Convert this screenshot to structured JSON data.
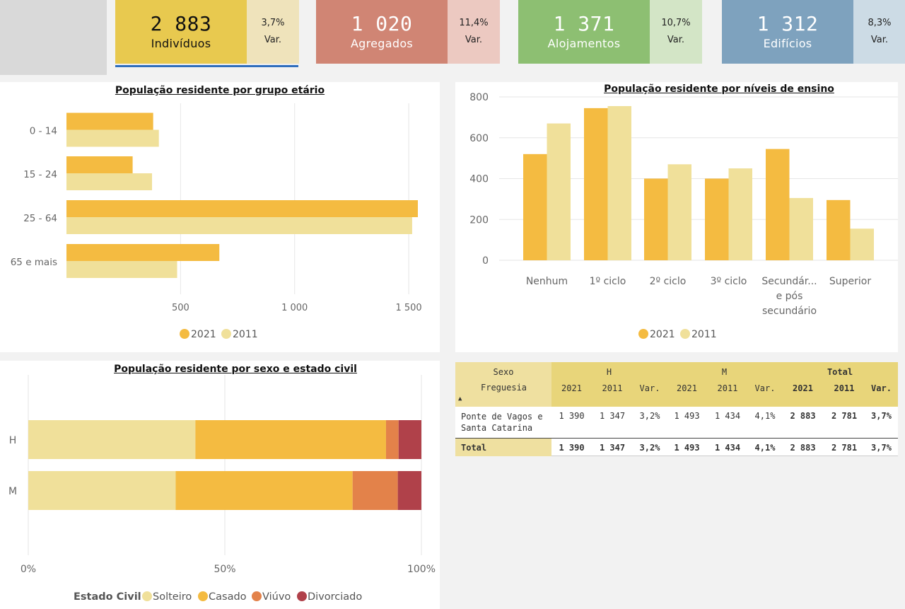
{
  "kpis": {
    "individuos": {
      "value": "2 883",
      "label": "Indivíduos",
      "var_value": "3,7%",
      "var_label": "Var."
    },
    "agregados": {
      "value": "1 020",
      "label": "Agregados",
      "var_value": "11,4%",
      "var_label": "Var."
    },
    "alojamentos": {
      "value": "1 371",
      "label": "Alojamentos",
      "var_value": "10,7%",
      "var_label": "Var."
    },
    "edificios": {
      "value": "1 312",
      "label": "Edifícios",
      "var_value": "8,3%",
      "var_label": "Var."
    }
  },
  "chart_data": [
    {
      "type": "bar",
      "orientation": "horizontal",
      "title": "População residente por grupo etário",
      "categories": [
        "0 - 14",
        "15 - 24",
        "25 - 64",
        "65 e mais"
      ],
      "series": [
        {
          "name": "2021",
          "values": [
            380,
            290,
            1540,
            670
          ],
          "color": "#f4bb41"
        },
        {
          "name": "2011",
          "values": [
            405,
            375,
            1515,
            485
          ],
          "color": "#f0e09a"
        }
      ],
      "xticks": [
        500,
        1000,
        1500
      ],
      "xtick_labels": [
        "500",
        "1 000",
        "1 500"
      ],
      "xlim": [
        0,
        1560
      ],
      "legend": "bottom-center",
      "grid": true
    },
    {
      "type": "bar",
      "title": "População residente por níveis de ensino",
      "categories": [
        "Nenhum",
        "1º ciclo",
        "2º ciclo",
        "3º ciclo",
        "Secundár... e pós secundário",
        "Superior"
      ],
      "category_lines": [
        [
          "Nenhum"
        ],
        [
          "1º ciclo"
        ],
        [
          "2º ciclo"
        ],
        [
          "3º ciclo"
        ],
        [
          "Secundár...",
          "e pós",
          "secundário"
        ],
        [
          "Superior"
        ]
      ],
      "series": [
        {
          "name": "2021",
          "values": [
            520,
            745,
            400,
            400,
            545,
            295
          ],
          "color": "#f4bb41"
        },
        {
          "name": "2011",
          "values": [
            670,
            755,
            470,
            450,
            305,
            155
          ],
          "color": "#f0e09a"
        }
      ],
      "yticks": [
        0,
        200,
        400,
        600,
        800
      ],
      "ylim": [
        0,
        800
      ],
      "legend": "bottom-center",
      "grid": true
    },
    {
      "type": "bar",
      "orientation": "horizontal",
      "stacked": "percent",
      "title": "População residente por sexo e estado civil",
      "categories": [
        "H",
        "M"
      ],
      "series": [
        {
          "name": "Solteiro",
          "values": [
            42.5,
            37.5
          ],
          "color": "#f0e09a"
        },
        {
          "name": "Casado",
          "values": [
            48.5,
            45.0
          ],
          "color": "#f4bb41"
        },
        {
          "name": "Viúvo",
          "values": [
            3.2,
            11.5
          ],
          "color": "#e3824a"
        },
        {
          "name": "Divorciado",
          "values": [
            5.8,
            6.0
          ],
          "color": "#b0414a"
        }
      ],
      "xticks": [
        "0%",
        "50%",
        "100%"
      ],
      "legend_title": "Estado Civil",
      "legend": "bottom-center",
      "grid": true
    }
  ],
  "table": {
    "h_sexo": "Sexo",
    "h_h": "H",
    "h_m": "M",
    "h_total": "Total",
    "h_freguesia": "Freguesia",
    "sort_icon": "▲",
    "cols": [
      "2021",
      "2011",
      "Var.",
      "2021",
      "2011",
      "Var.",
      "2021",
      "2011",
      "Var."
    ],
    "rows": [
      {
        "name_l1": "Ponte de Vagos e",
        "name_l2": "Santa Catarina",
        "values": [
          "1 390",
          "1 347",
          "3,2%",
          "1 493",
          "1 434",
          "4,1%",
          "2 883",
          "2 781",
          "3,7%"
        ]
      }
    ],
    "total": {
      "name": "Total",
      "values": [
        "1 390",
        "1 347",
        "3,2%",
        "1 493",
        "1 434",
        "4,1%",
        "2 883",
        "2 781",
        "3,7%"
      ]
    }
  }
}
